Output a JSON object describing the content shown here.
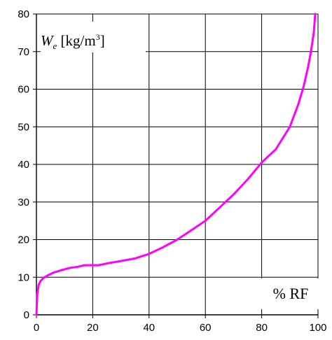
{
  "chart_data": {
    "type": "line",
    "ylabel": {
      "symbol": "W",
      "subscript": "e",
      "unit_prefix": "[kg/m",
      "unit_power": "3",
      "unit_suffix": "]"
    },
    "xlabel": "% RF",
    "xlim": [
      0,
      100
    ],
    "ylim": [
      0,
      80
    ],
    "x_ticks": [
      "0",
      "20",
      "40",
      "60",
      "80",
      "100"
    ],
    "y_ticks": [
      "0",
      "10",
      "20",
      "30",
      "40",
      "50",
      "60",
      "70",
      "80"
    ],
    "grid": true,
    "line_color": "#ff00ff",
    "series": [
      {
        "x": [
          0,
          0.3,
          0.8,
          1.5,
          2.5,
          4,
          6,
          9,
          12,
          15,
          17,
          20,
          22,
          26,
          30,
          35,
          40,
          45,
          50,
          55,
          60,
          65,
          70,
          75,
          80,
          85,
          90,
          93,
          95,
          96.5,
          97.5,
          98.5,
          99
        ],
        "y": [
          0,
          5.5,
          8,
          9,
          9.8,
          10.5,
          11.2,
          11.9,
          12.5,
          12.8,
          13.2,
          13.2,
          13.2,
          13.8,
          14.3,
          15,
          16.2,
          18,
          20,
          22.5,
          25,
          28.5,
          32,
          36,
          40.5,
          44,
          50,
          56,
          61,
          66,
          70,
          75,
          80
        ]
      }
    ]
  }
}
